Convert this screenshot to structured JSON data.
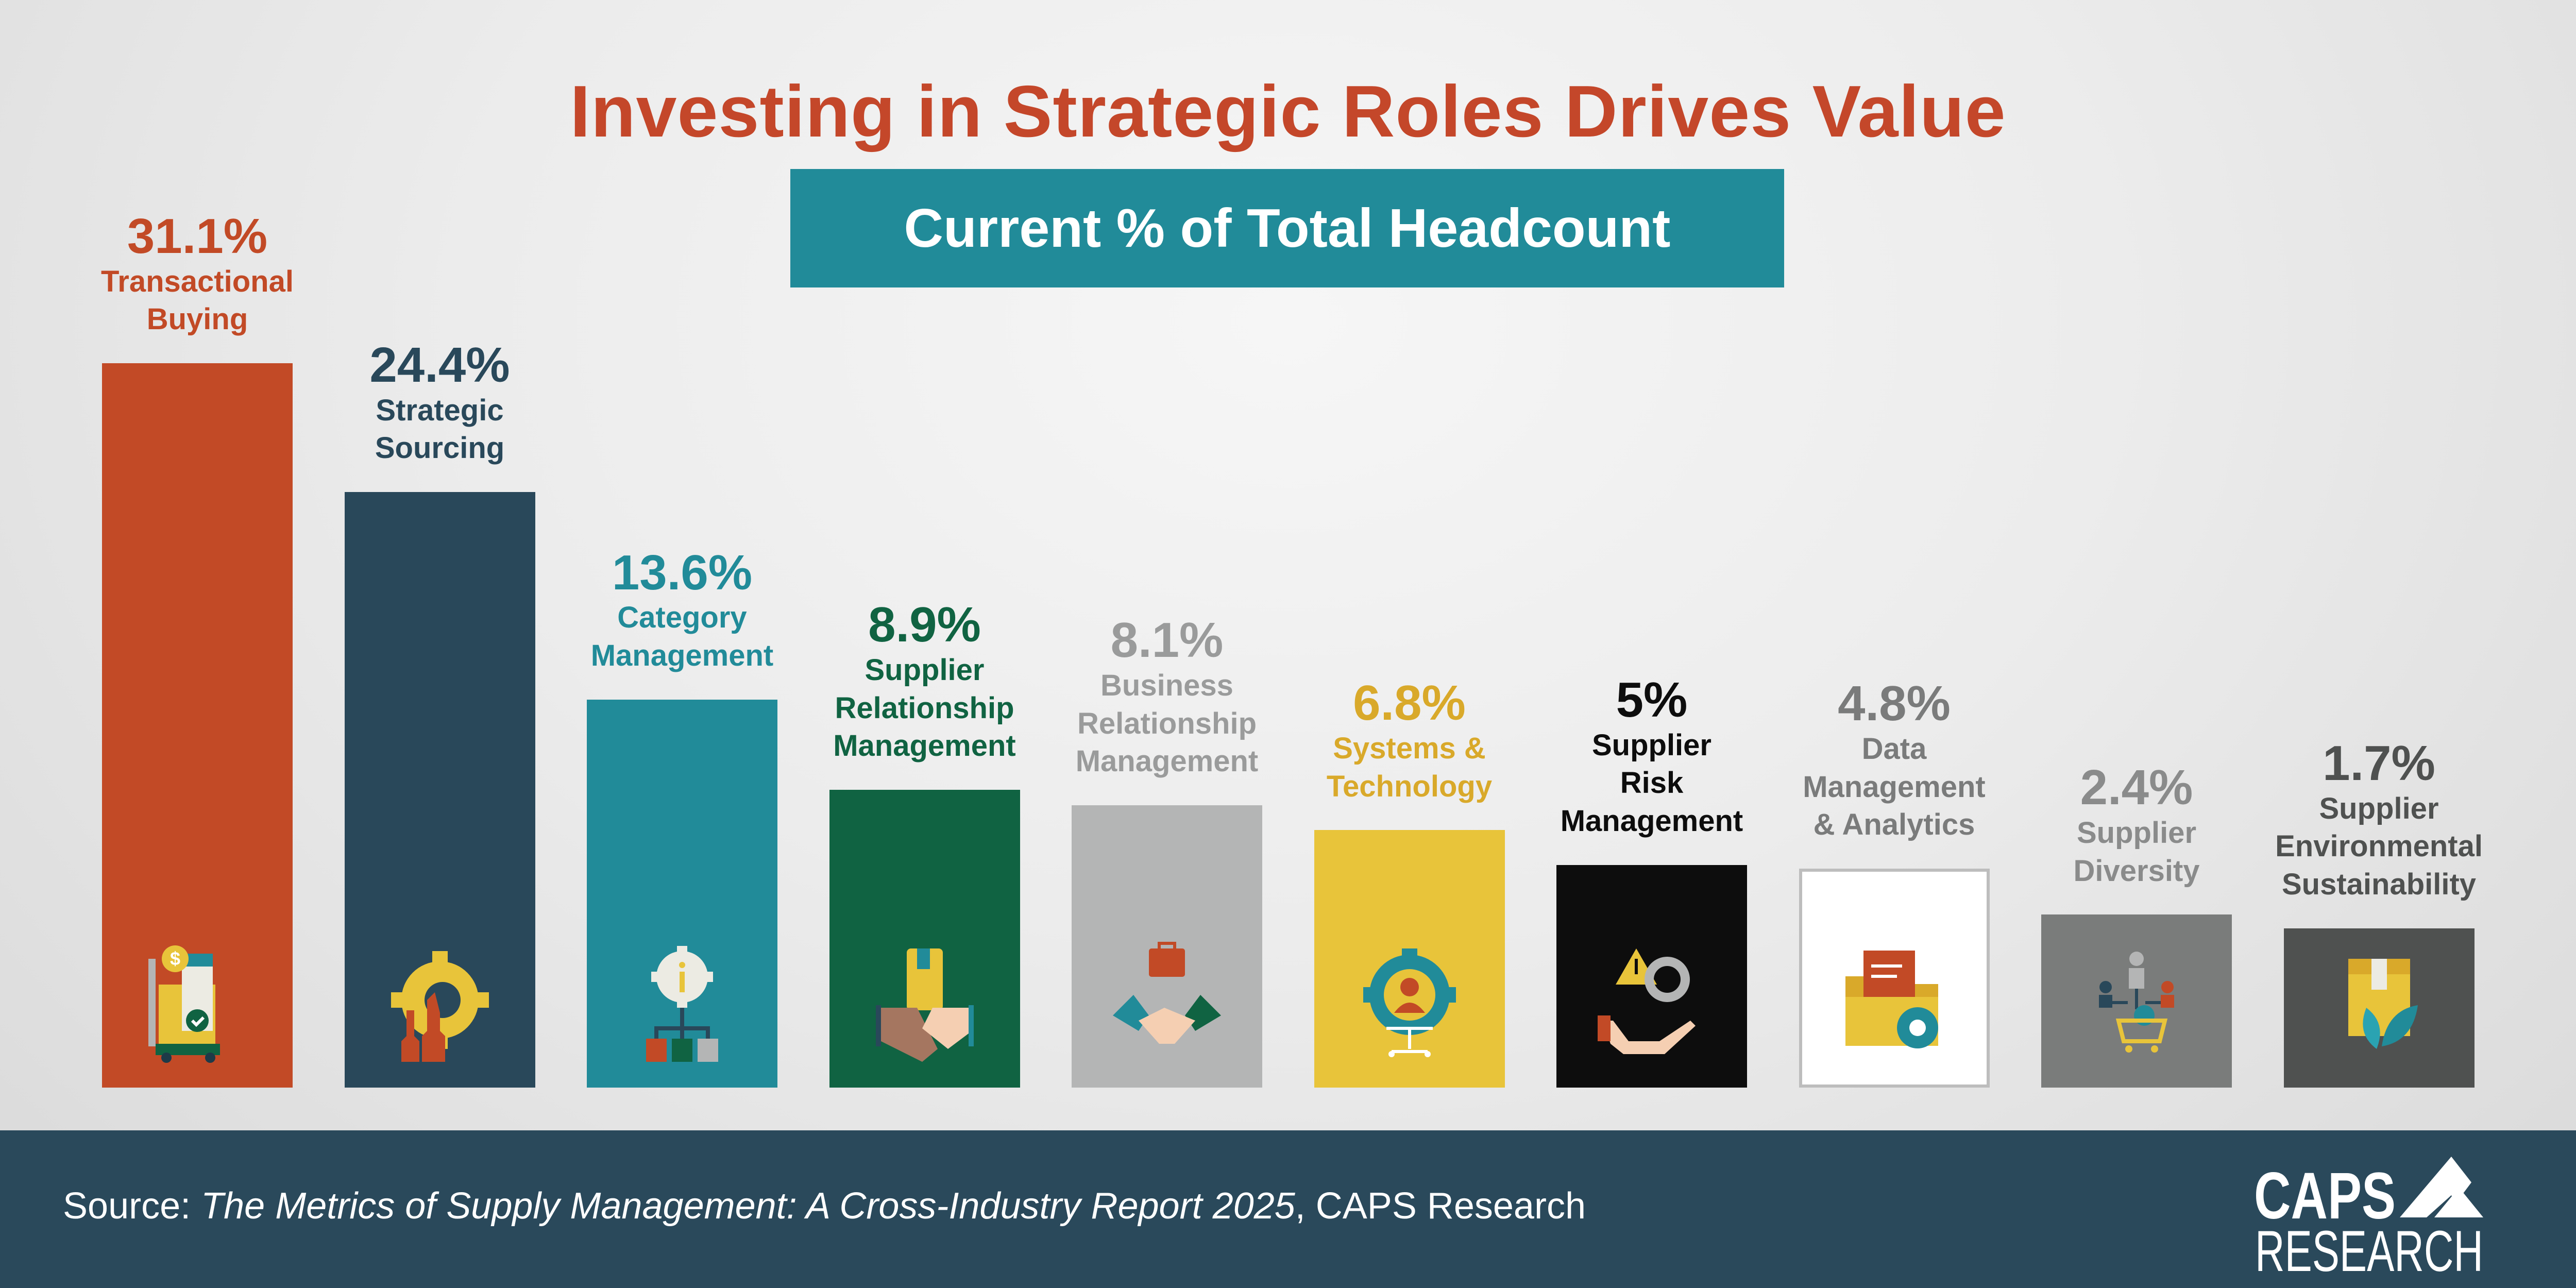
{
  "chart_data": {
    "type": "bar",
    "title": "Investing in Strategic Roles Drives Value",
    "subtitle": "Current % of Total Headcount",
    "unit": "%",
    "categories": [
      "Transactional Buying",
      "Strategic Sourcing",
      "Category Management",
      "Supplier Relationship Management",
      "Business Relationship Management",
      "Systems & Technology",
      "Supplier Risk Management",
      "Data Management & Analytics",
      "Supplier Diversity",
      "Supplier Environmental Sustainability"
    ],
    "category_lines": [
      [
        "Transactional",
        "Buying"
      ],
      [
        "Strategic",
        "Sourcing"
      ],
      [
        "Category",
        "Management"
      ],
      [
        "Supplier",
        "Relationship",
        "Management"
      ],
      [
        "Business",
        "Relationship",
        "Management"
      ],
      [
        "Systems &",
        "Technology"
      ],
      [
        "Supplier",
        "Risk",
        "Management"
      ],
      [
        "Data",
        "Management",
        "& Analytics"
      ],
      [
        "Supplier",
        "Diversity"
      ],
      [
        "Supplier",
        "Environmental",
        "Sustainability"
      ]
    ],
    "values": [
      31.1,
      24.4,
      13.6,
      8.9,
      8.1,
      6.8,
      5,
      4.8,
      2.4,
      1.7
    ],
    "value_labels": [
      "31.1%",
      "24.4%",
      "13.6%",
      "8.9%",
      "8.1%",
      "6.8%",
      "5%",
      "4.8%",
      "2.4%",
      "1.7%"
    ],
    "bar_colors": [
      "#c24a26",
      "#29485a",
      "#218b99",
      "#106342",
      "#b4b5b5",
      "#e8c43a",
      "#0d0d0d",
      "#ffffff",
      "#7a7c7b",
      "#4f5150"
    ],
    "text_colors": [
      "#c24a26",
      "#29485a",
      "#218b99",
      "#106342",
      "#9a9b9b",
      "#d9a92a",
      "#0d0d0d",
      "#7a7b7b",
      "#8a8b8b",
      "#4f5150"
    ],
    "icons": [
      "cart-invoice-icon",
      "gear-chess-icon",
      "info-gear-hierarchy-icon",
      "package-handshake-icon",
      "briefcase-handshake-icon",
      "gear-person-chair-icon",
      "warning-gear-hand-icon",
      "folder-document-gear-icon",
      "people-cart-globe-icon",
      "box-leaf-icon"
    ],
    "legend": "none",
    "grid": false
  },
  "footer": {
    "source_prefix": "Source: ",
    "source_title": "The Metrics of Supply Management: A Cross-Industry Report 2025",
    "source_suffix": ", CAPS Research"
  },
  "logo": {
    "line1": "CAPS",
    "line2": "RESEARCH"
  },
  "colors": {
    "title": "#c4472a",
    "subtitle_box": "#218b99",
    "footer": "#2a495b"
  }
}
